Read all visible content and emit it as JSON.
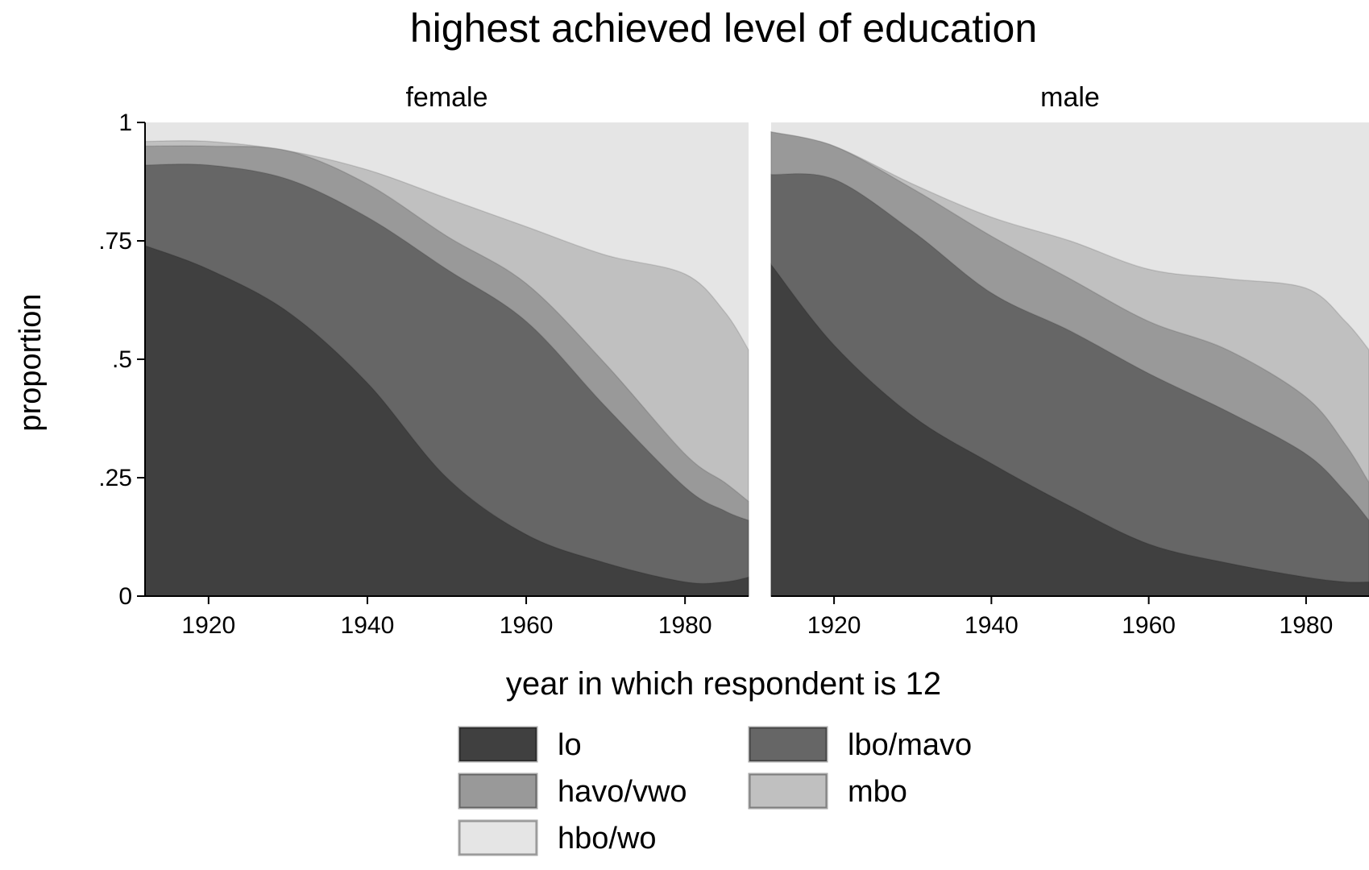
{
  "chart_data": {
    "type": "area",
    "title": "highest achieved level of education",
    "xlabel": "year in which respondent is 12",
    "ylabel": "proportion",
    "xlim": [
      1912,
      1988
    ],
    "ylim": [
      0,
      1
    ],
    "x_ticks": [
      1920,
      1940,
      1960,
      1980
    ],
    "x_tick_labels": [
      "1920",
      "1940",
      "1960",
      "1980"
    ],
    "y_ticks": [
      0,
      0.25,
      0.5,
      0.75,
      1
    ],
    "y_tick_labels": [
      "0",
      ".25",
      ".5",
      ".75",
      "1"
    ],
    "stacking": "cumulative proportion (bottom to top)",
    "grid": false,
    "legend_position": "bottom",
    "categories_order": [
      "lo",
      "lbo/mavo",
      "havo/vwo",
      "mbo",
      "hbo/wo"
    ],
    "colors": {
      "lo": "#404040",
      "lbo/mavo": "#666666",
      "havo/vwo": "#999999",
      "mbo": "#c0c0c0",
      "hbo/wo": "#e5e5e5"
    },
    "legend": [
      {
        "label": "lo",
        "color": "#404040"
      },
      {
        "label": "lbo/mavo",
        "color": "#666666"
      },
      {
        "label": "havo/vwo",
        "color": "#999999"
      },
      {
        "label": "mbo",
        "color": "#c0c0c0"
      },
      {
        "label": "hbo/wo",
        "color": "#e5e5e5"
      }
    ],
    "panels": [
      {
        "label": "female",
        "x": [
          1912,
          1920,
          1930,
          1940,
          1950,
          1960,
          1970,
          1980,
          1985,
          1988
        ],
        "series": [
          {
            "name": "lo",
            "values": [
              0.74,
              0.69,
              0.6,
              0.45,
              0.25,
              0.13,
              0.07,
              0.03,
              0.03,
              0.04
            ]
          },
          {
            "name": "lbo/mavo",
            "values": [
              0.91,
              0.91,
              0.88,
              0.8,
              0.69,
              0.58,
              0.4,
              0.23,
              0.18,
              0.16
            ]
          },
          {
            "name": "havo/vwo",
            "values": [
              0.95,
              0.95,
              0.94,
              0.87,
              0.76,
              0.66,
              0.49,
              0.3,
              0.24,
              0.2
            ]
          },
          {
            "name": "mbo",
            "values": [
              0.96,
              0.96,
              0.94,
              0.9,
              0.84,
              0.78,
              0.72,
              0.68,
              0.6,
              0.52
            ]
          },
          {
            "name": "hbo/wo",
            "values": [
              1,
              1,
              1,
              1,
              1,
              1,
              1,
              1,
              1,
              1
            ]
          }
        ]
      },
      {
        "label": "male",
        "x": [
          1912,
          1920,
          1930,
          1940,
          1950,
          1960,
          1970,
          1980,
          1985,
          1988
        ],
        "series": [
          {
            "name": "lo",
            "values": [
              0.7,
              0.53,
              0.38,
              0.28,
              0.19,
              0.11,
              0.07,
              0.04,
              0.03,
              0.03
            ]
          },
          {
            "name": "lbo/mavo",
            "values": [
              0.89,
              0.88,
              0.77,
              0.64,
              0.56,
              0.47,
              0.39,
              0.3,
              0.22,
              0.16
            ]
          },
          {
            "name": "havo/vwo",
            "values": [
              0.98,
              0.95,
              0.86,
              0.76,
              0.67,
              0.58,
              0.52,
              0.42,
              0.32,
              0.24
            ]
          },
          {
            "name": "mbo",
            "values": [
              0.98,
              0.95,
              0.87,
              0.8,
              0.75,
              0.69,
              0.67,
              0.65,
              0.58,
              0.52
            ]
          },
          {
            "name": "hbo/wo",
            "values": [
              1,
              1,
              1,
              1,
              1,
              1,
              1,
              1,
              1,
              1
            ]
          }
        ]
      }
    ]
  }
}
